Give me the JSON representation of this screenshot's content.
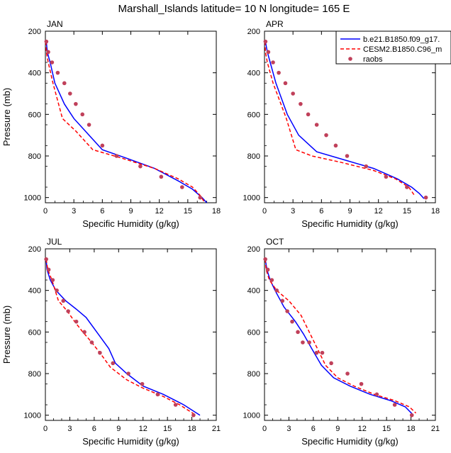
{
  "figure_title": "Marshall_Islands  latitude= 10 N longitude= 165 E",
  "colors": {
    "model1": "#0000ff",
    "model2": "#ff0000",
    "raobs": "#c0405a",
    "axes": "#000000"
  },
  "legend": {
    "placement": "top-right of APR panel",
    "entries": [
      "b.e21.B1850.f09_g17.",
      "CESM2.B1850.C96_m",
      "raobs"
    ]
  },
  "chart_data": [
    {
      "type": "line",
      "title": "JAN",
      "xlabel": "Specific Humidity (g/kg)",
      "ylabel": "Pressure (mb)",
      "xlim": [
        0,
        18
      ],
      "ylim": [
        200,
        1025
      ],
      "y_reversed": true,
      "xticks": [
        0,
        3,
        6,
        9,
        12,
        15,
        18
      ],
      "yticks": [
        200,
        400,
        600,
        800,
        1000
      ],
      "grid": false,
      "series": [
        {
          "name": "b.e21.B1850.f09_g17.",
          "style": "solid",
          "x": [
            0.1,
            0.2,
            0.5,
            1.0,
            2.0,
            3.0,
            4.2,
            6.0,
            8.5,
            11.5,
            14.0,
            15.5,
            16.5,
            17.0
          ],
          "y": [
            250,
            300,
            350,
            450,
            550,
            620,
            680,
            770,
            810,
            860,
            920,
            960,
            1000,
            1025
          ]
        },
        {
          "name": "CESM2.B1850.C96_m",
          "style": "dashed",
          "x": [
            0.05,
            0.1,
            0.3,
            0.8,
            1.8,
            3.2,
            5.0,
            8.0,
            11.5,
            14.0,
            15.5,
            16.3,
            16.8
          ],
          "y": [
            250,
            300,
            350,
            450,
            620,
            680,
            770,
            810,
            860,
            910,
            950,
            990,
            1025
          ]
        },
        {
          "name": "raobs",
          "style": "markers",
          "x": [
            0.1,
            0.3,
            0.7,
            1.3,
            2.0,
            2.6,
            3.2,
            3.9,
            4.6,
            6.0,
            7.5,
            10.0,
            12.2,
            14.4,
            16.3
          ],
          "y": [
            250,
            300,
            350,
            400,
            450,
            500,
            550,
            600,
            650,
            750,
            800,
            850,
            900,
            950,
            1000
          ]
        }
      ]
    },
    {
      "type": "line",
      "title": "APR",
      "xlabel": "Specific Humidity (g/kg)",
      "ylabel": "",
      "xlim": [
        0,
        18
      ],
      "ylim": [
        200,
        1025
      ],
      "y_reversed": true,
      "xticks": [
        0,
        3,
        6,
        9,
        12,
        15,
        18
      ],
      "yticks": [
        200,
        400,
        600,
        800,
        1000
      ],
      "grid": false,
      "series": [
        {
          "name": "b.e21.B1850.f09_g17.",
          "style": "solid",
          "x": [
            0.1,
            0.3,
            0.6,
            1.2,
            2.4,
            3.6,
            5.5,
            8.5,
            11.5,
            14.0,
            15.5,
            16.3,
            16.8
          ],
          "y": [
            250,
            300,
            350,
            450,
            600,
            700,
            780,
            820,
            860,
            910,
            950,
            980,
            1005
          ]
        },
        {
          "name": "CESM2.B1850.C96_m",
          "style": "dashed",
          "x": [
            0.05,
            0.1,
            0.3,
            0.9,
            2.3,
            3.3,
            5.0,
            8.0,
            11.5,
            13.8,
            15.2,
            15.8
          ],
          "y": [
            250,
            300,
            350,
            450,
            620,
            770,
            800,
            830,
            870,
            910,
            950,
            990
          ]
        },
        {
          "name": "raobs",
          "style": "markers",
          "x": [
            0.1,
            0.4,
            0.9,
            1.5,
            2.2,
            3.0,
            3.8,
            4.6,
            5.5,
            6.5,
            7.5,
            8.7,
            10.7,
            12.8,
            15.0,
            17.0
          ],
          "y": [
            250,
            300,
            350,
            400,
            450,
            500,
            550,
            600,
            650,
            700,
            750,
            800,
            850,
            900,
            950,
            1000
          ]
        }
      ]
    },
    {
      "type": "line",
      "title": "JUL",
      "xlabel": "Specific Humidity (g/kg)",
      "ylabel": "Pressure (mb)",
      "xlim": [
        0,
        21
      ],
      "ylim": [
        200,
        1025
      ],
      "y_reversed": true,
      "xticks": [
        0,
        3,
        6,
        9,
        12,
        15,
        18,
        21
      ],
      "yticks": [
        200,
        400,
        600,
        800,
        1000
      ],
      "grid": false,
      "series": [
        {
          "name": "b.e21.B1850.f09_g17.",
          "style": "solid",
          "x": [
            0.1,
            0.2,
            0.6,
            1.3,
            2.5,
            3.8,
            5.0,
            6.5,
            7.8,
            8.6,
            10.0,
            12.0,
            14.5,
            17.0,
            19.0
          ],
          "y": [
            250,
            300,
            350,
            400,
            450,
            490,
            530,
            610,
            680,
            750,
            800,
            860,
            900,
            950,
            1000
          ]
        },
        {
          "name": "CESM2.B1850.C96_m",
          "style": "dashed",
          "x": [
            0.1,
            0.3,
            0.8,
            1.6,
            2.7,
            3.6,
            4.6,
            5.7,
            6.7,
            8.0,
            10.0,
            12.0,
            14.5,
            16.5,
            18.5
          ],
          "y": [
            250,
            300,
            350,
            450,
            500,
            550,
            600,
            650,
            700,
            770,
            830,
            870,
            910,
            950,
            1000
          ]
        },
        {
          "name": "raobs",
          "style": "markers",
          "x": [
            0.1,
            0.4,
            0.9,
            1.4,
            2.2,
            2.8,
            3.8,
            4.8,
            5.7,
            6.7,
            8.3,
            10.2,
            11.9,
            13.8,
            16.0,
            18.2
          ],
          "y": [
            250,
            300,
            350,
            400,
            450,
            500,
            550,
            600,
            650,
            700,
            750,
            800,
            850,
            900,
            950,
            1000
          ]
        }
      ]
    },
    {
      "type": "line",
      "title": "OCT",
      "xlabel": "Specific Humidity (g/kg)",
      "ylabel": "",
      "xlim": [
        0,
        21
      ],
      "ylim": [
        200,
        1025
      ],
      "y_reversed": true,
      "xticks": [
        0,
        3,
        6,
        9,
        12,
        15,
        18,
        21
      ],
      "yticks": [
        200,
        400,
        600,
        800,
        1000
      ],
      "grid": false,
      "series": [
        {
          "name": "b.e21.B1850.f09_g17.",
          "style": "solid",
          "x": [
            0.1,
            0.3,
            0.7,
            1.3,
            2.4,
            3.8,
            4.8,
            5.8,
            7.0,
            8.5,
            10.5,
            13.0,
            15.5,
            17.3,
            18.3
          ],
          "y": [
            250,
            300,
            350,
            400,
            480,
            550,
            610,
            680,
            760,
            820,
            860,
            900,
            930,
            960,
            1000
          ]
        },
        {
          "name": "CESM2.B1850.C96_m",
          "style": "dashed",
          "x": [
            0.1,
            0.2,
            0.6,
            1.5,
            3.0,
            4.5,
            5.5,
            6.5,
            7.5,
            9.0,
            11.0,
            13.5,
            16.0,
            17.8,
            18.6
          ],
          "y": [
            250,
            300,
            350,
            400,
            450,
            520,
            600,
            680,
            760,
            820,
            860,
            900,
            930,
            960,
            990
          ]
        },
        {
          "name": "raobs",
          "style": "markers",
          "x": [
            0.1,
            0.4,
            0.9,
            1.5,
            2.2,
            2.8,
            3.4,
            4.1,
            4.7,
            5.5,
            6.4,
            7.1,
            8.2,
            10.2,
            11.9,
            13.8,
            16.0,
            18.1
          ],
          "y": [
            250,
            300,
            350,
            400,
            450,
            500,
            550,
            600,
            650,
            650,
            700,
            700,
            750,
            800,
            850,
            900,
            950,
            1000
          ]
        }
      ]
    }
  ]
}
